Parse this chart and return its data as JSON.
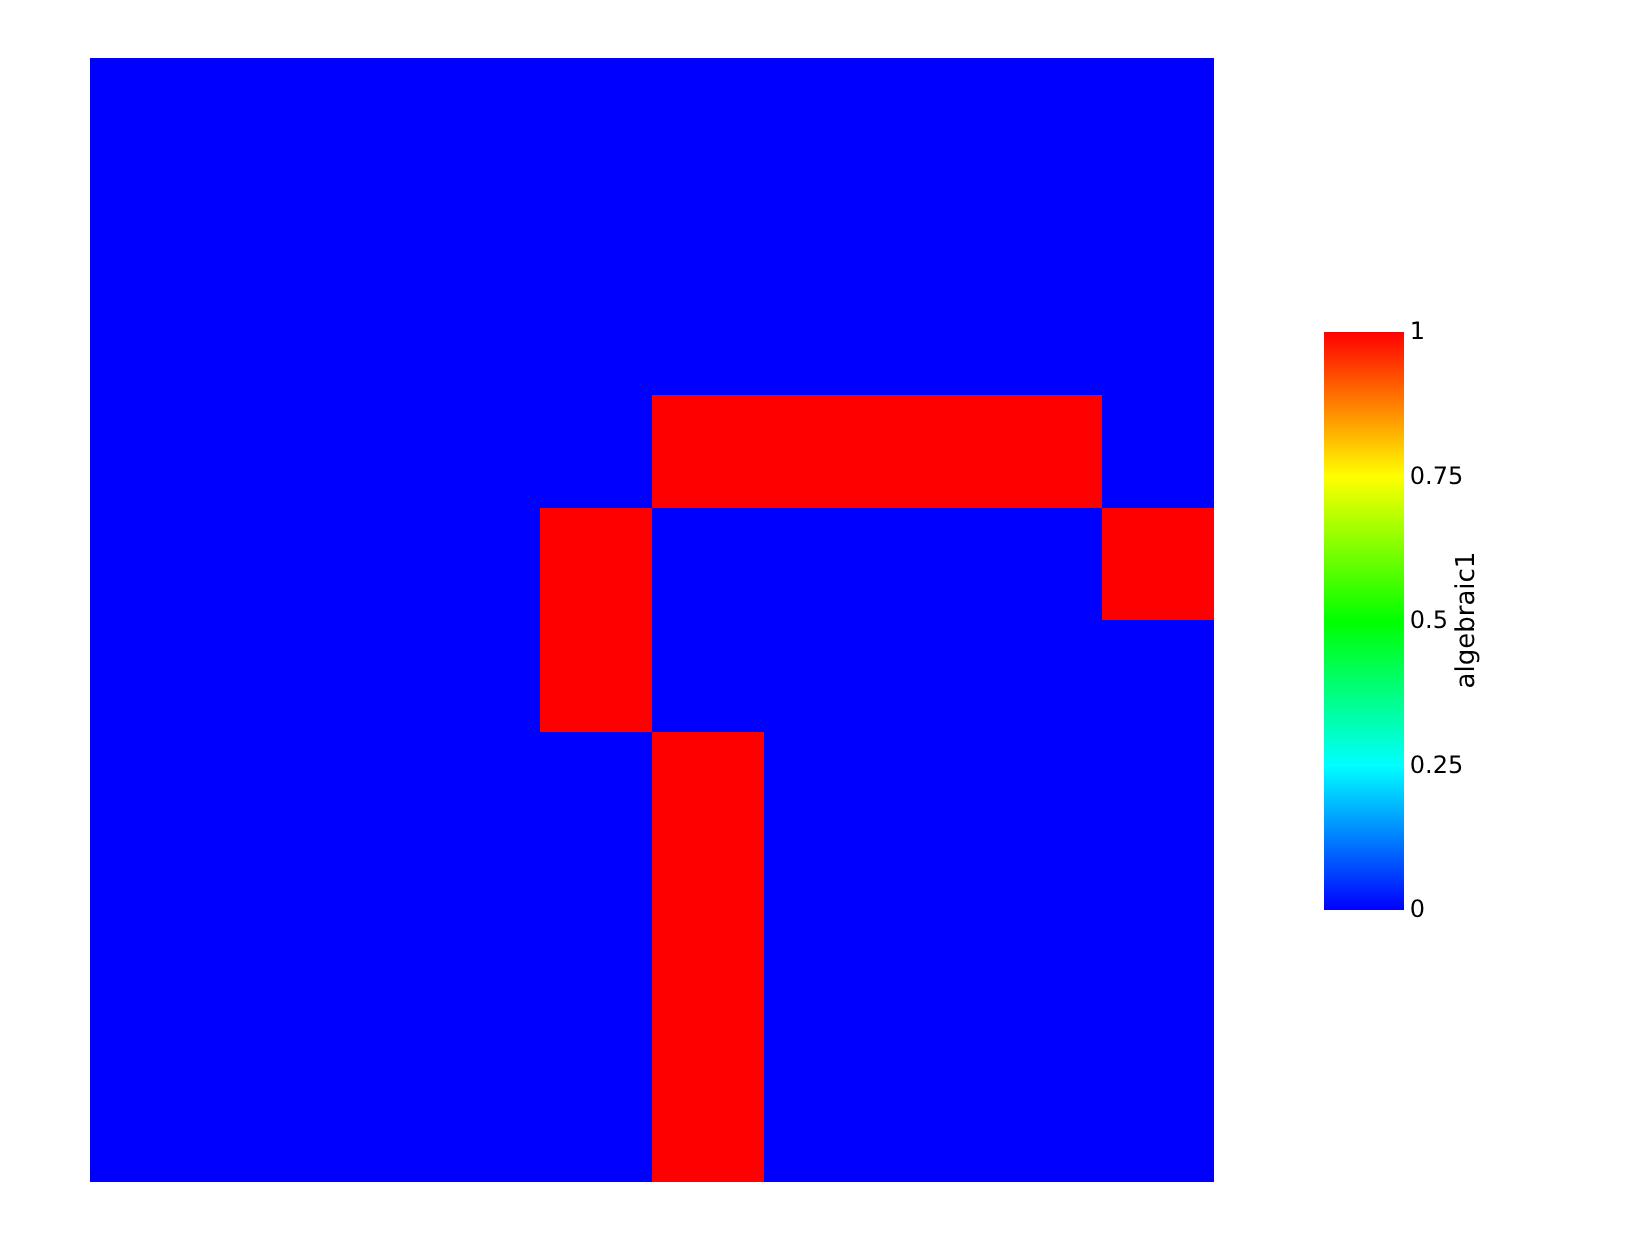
{
  "chart_data": {
    "type": "heatmap",
    "clabel": "algebraic1",
    "categories": [
      null,
      null,
      null,
      null,
      null,
      null,
      null,
      null,
      null,
      null
    ],
    "y_categories": [
      null,
      null,
      null,
      null,
      null,
      null,
      null,
      null,
      null,
      null
    ],
    "cells": [
      [
        0,
        0,
        0,
        0,
        0,
        0,
        0,
        0,
        0,
        0
      ],
      [
        0,
        0,
        0,
        0,
        0,
        0,
        0,
        0,
        0,
        0
      ],
      [
        0,
        0,
        0,
        0,
        0,
        0,
        0,
        0,
        0,
        0
      ],
      [
        0,
        0,
        0,
        0,
        0,
        1,
        1,
        1,
        1,
        0
      ],
      [
        0,
        0,
        0,
        0,
        1,
        0,
        0,
        0,
        0,
        1
      ],
      [
        0,
        0,
        0,
        0,
        1,
        0,
        0,
        0,
        0,
        0
      ],
      [
        0,
        0,
        0,
        0,
        0,
        1,
        0,
        0,
        0,
        0
      ],
      [
        0,
        0,
        0,
        0,
        0,
        1,
        0,
        0,
        0,
        0
      ],
      [
        0,
        0,
        0,
        0,
        0,
        1,
        0,
        0,
        0,
        0
      ],
      [
        0,
        0,
        0,
        0,
        0,
        1,
        0,
        0,
        0,
        0
      ]
    ],
    "clim": [
      0,
      1
    ],
    "cticks": [
      0,
      0.25,
      0.5,
      0.75,
      1
    ]
  }
}
